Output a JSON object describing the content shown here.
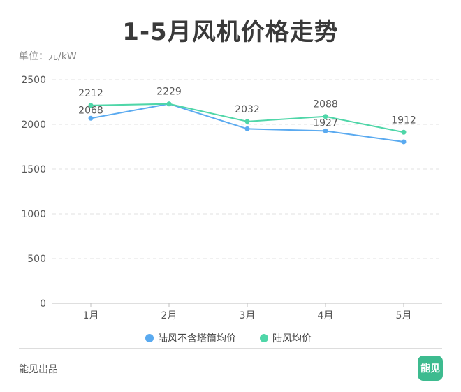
{
  "header": {
    "title": "1-5月风机价格走势",
    "unit": "单位：元/kW"
  },
  "footer": {
    "source": "能见出品",
    "logo_text": "能见"
  },
  "chart_data": {
    "type": "line",
    "title": "1-5月风机价格走势",
    "xlabel": "",
    "ylabel": "单位：元/kW",
    "categories": [
      "1月",
      "2月",
      "3月",
      "4月",
      "5月"
    ],
    "ylim": [
      0,
      2500
    ],
    "yticks": [
      0,
      500,
      1000,
      1500,
      2000,
      2500
    ],
    "grid": true,
    "legend": "bottom",
    "series": [
      {
        "name": "陆风不含塔筒均价",
        "values": [
          2068,
          2229,
          1950,
          1927,
          1805
        ],
        "labels": [
          "2068",
          "",
          "",
          "1927",
          ""
        ],
        "color": "#5aaaf0"
      },
      {
        "name": "陆风均价",
        "values": [
          2212,
          2229,
          2032,
          2088,
          1912
        ],
        "labels": [
          "2212",
          "2229",
          "2032",
          "2088",
          "1912"
        ],
        "color": "#4fd6a8"
      }
    ]
  }
}
